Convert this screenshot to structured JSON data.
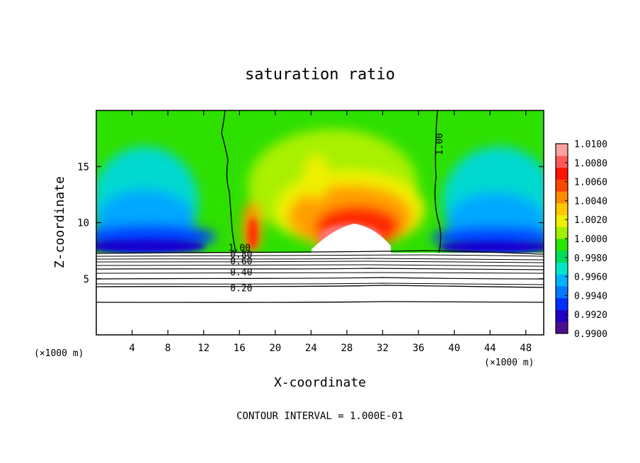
{
  "chart_data": {
    "type": "heatmap",
    "title": "saturation ratio",
    "xlabel": "X-coordinate",
    "ylabel": "Z-coordinate",
    "x_unit_label": "(×1000 m)",
    "xlim": [
      0,
      50
    ],
    "ylim": [
      0,
      20
    ],
    "x_ticks": [
      4,
      8,
      12,
      16,
      20,
      24,
      28,
      32,
      36,
      40,
      44,
      48
    ],
    "y_ticks": [
      5,
      10,
      15
    ],
    "footer": "CONTOUR INTERVAL = 1.000E-01",
    "colorbar": {
      "min": 0.99,
      "max": 1.01,
      "labels": [
        "1.0100",
        "1.0080",
        "1.0060",
        "1.0040",
        "1.0020",
        "1.0000",
        "0.9980",
        "0.9960",
        "0.9940",
        "0.9920",
        "0.9900"
      ],
      "colors": [
        "#4b0e8e",
        "#2300c8",
        "#0030ff",
        "#0078ff",
        "#00b4ff",
        "#00e6c8",
        "#00dc5a",
        "#28e600",
        "#a0f000",
        "#f0f000",
        "#ffc800",
        "#ff8c00",
        "#ff4600",
        "#ff1400",
        "#ff5a5a",
        "#ffa0a0"
      ]
    },
    "contour_labels": [
      {
        "text": "1.00",
        "x": 16.0,
        "y": 7.8
      },
      {
        "text": "0.80",
        "x": 16.2,
        "y": 7.2
      },
      {
        "text": "0.60",
        "x": 16.2,
        "y": 6.6
      },
      {
        "text": "0.40",
        "x": 16.2,
        "y": 5.6
      },
      {
        "text": "0.20",
        "x": 16.2,
        "y": 4.2
      },
      {
        "text": "1.00",
        "x": 38.3,
        "y": 17.0
      }
    ]
  }
}
